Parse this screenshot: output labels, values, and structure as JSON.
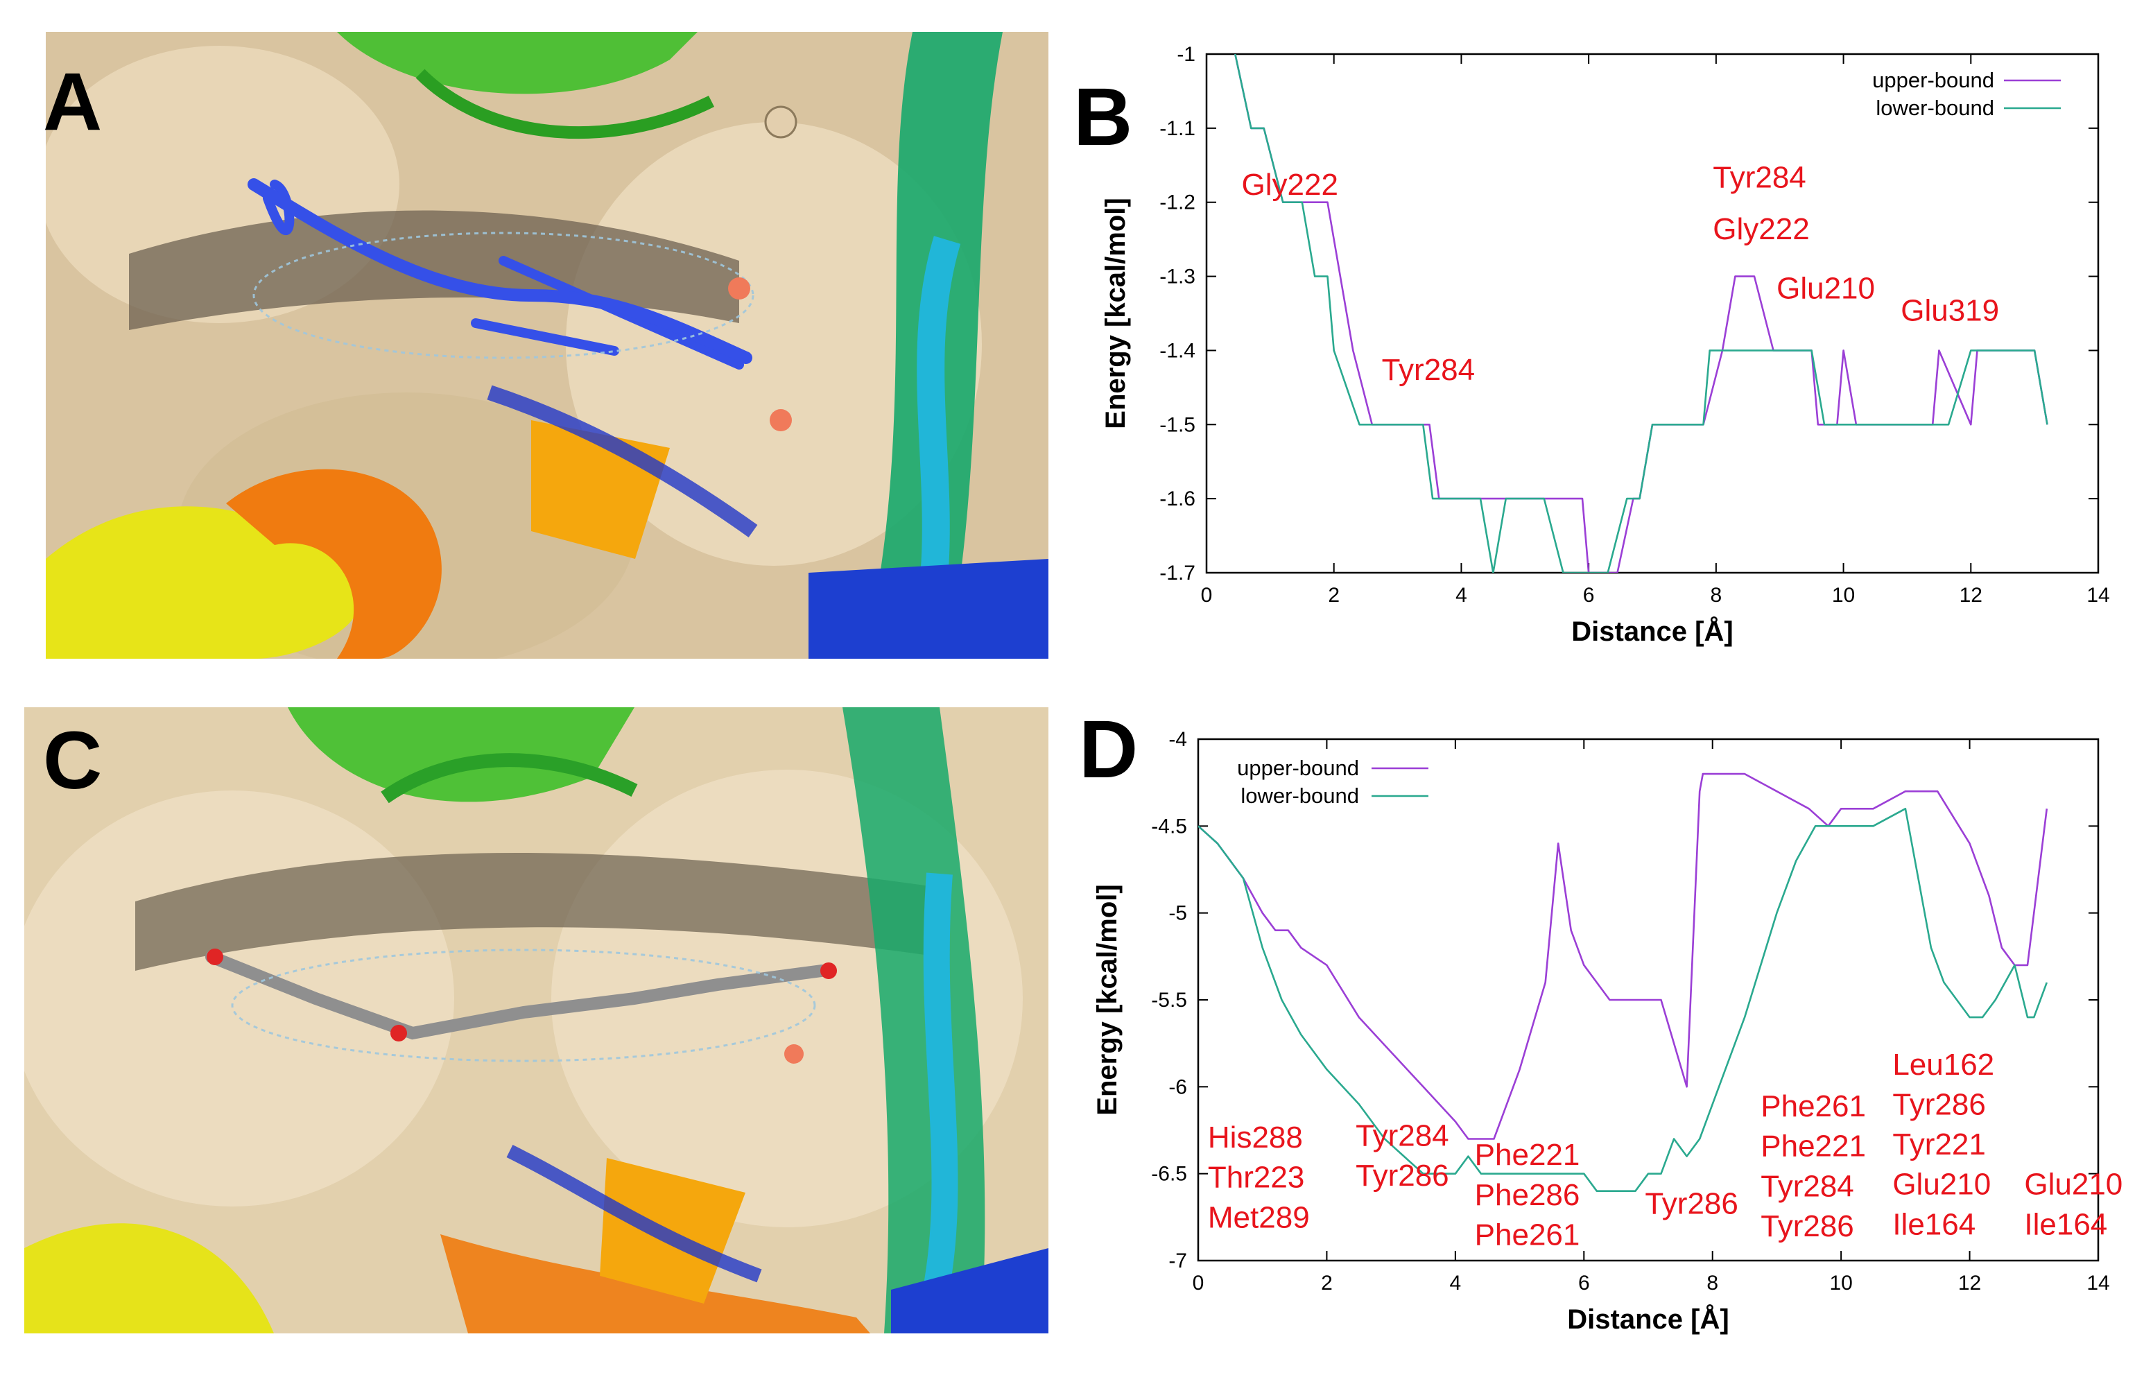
{
  "panels": {
    "A": {
      "letter": "A"
    },
    "B": {
      "letter": "B"
    },
    "C": {
      "letter": "C"
    },
    "D": {
      "letter": "D"
    }
  },
  "colors": {
    "upper_bound": "#9b3fd6",
    "lower_bound": "#2aa98f",
    "annotation": "#e8141c",
    "surface": "#e6d3b3",
    "ligand_A": "#3355e6",
    "ligand_C": "#8c8c8c"
  },
  "chart_data": [
    {
      "panel": "B",
      "type": "line",
      "xlabel": "Distance [Å]",
      "ylabel": "Energy [kcal/mol]",
      "xlim": [
        0,
        14
      ],
      "ylim": [
        -1.7,
        -1.0
      ],
      "xticks": [
        0,
        2,
        4,
        6,
        8,
        10,
        12,
        14
      ],
      "yticks": [
        -1.7,
        -1.6,
        -1.5,
        -1.4,
        -1.3,
        -1.2,
        -1.1,
        -1
      ],
      "legend_position": "top-right",
      "series": [
        {
          "name": "upper-bound",
          "color": "#9b3fd6",
          "x": [
            0.45,
            0.7,
            0.9,
            1.2,
            1.9,
            2.1,
            2.3,
            2.6,
            3.5,
            3.65,
            4.4,
            4.5,
            4.9,
            5.3,
            5.9,
            6.0,
            6.35,
            6.45,
            6.7,
            6.8,
            7.0,
            7.8,
            8.1,
            8.3,
            8.6,
            8.9,
            9.4,
            9.5,
            9.6,
            9.8,
            9.9,
            10.0,
            10.2,
            11.3,
            11.4,
            11.5,
            12.0,
            12.1,
            13.0,
            13.2
          ],
          "y": [
            -1.0,
            -1.1,
            -1.1,
            -1.2,
            -1.2,
            -1.3,
            -1.4,
            -1.5,
            -1.5,
            -1.6,
            -1.6,
            -1.6,
            -1.6,
            -1.6,
            -1.6,
            -1.7,
            -1.7,
            -1.7,
            -1.6,
            -1.6,
            -1.5,
            -1.5,
            -1.4,
            -1.3,
            -1.3,
            -1.4,
            -1.4,
            -1.4,
            -1.5,
            -1.5,
            -1.5,
            -1.4,
            -1.5,
            -1.5,
            -1.5,
            -1.4,
            -1.5,
            -1.4,
            -1.4,
            -1.5
          ]
        },
        {
          "name": "lower-bound",
          "color": "#2aa98f",
          "x": [
            0.45,
            0.7,
            0.9,
            1.2,
            1.5,
            1.7,
            1.9,
            2.0,
            2.4,
            3.4,
            3.55,
            4.2,
            4.3,
            4.5,
            4.7,
            5.0,
            5.3,
            5.6,
            5.9,
            6.3,
            6.6,
            6.8,
            7.0,
            7.8,
            7.9,
            8.8,
            9.0,
            9.5,
            9.7,
            11.5,
            11.6,
            11.65,
            12.0,
            13.0,
            13.2
          ],
          "y": [
            -1.0,
            -1.1,
            -1.1,
            -1.2,
            -1.2,
            -1.3,
            -1.3,
            -1.4,
            -1.5,
            -1.5,
            -1.6,
            -1.6,
            -1.6,
            -1.7,
            -1.6,
            -1.6,
            -1.6,
            -1.7,
            -1.7,
            -1.7,
            -1.6,
            -1.6,
            -1.5,
            -1.5,
            -1.4,
            -1.4,
            -1.4,
            -1.4,
            -1.5,
            -1.5,
            -1.5,
            -1.5,
            -1.4,
            -1.4,
            -1.5
          ]
        }
      ],
      "annotations": [
        {
          "text": "Gly222",
          "x": 0.55,
          "y": -1.19
        },
        {
          "text": "Tyr284",
          "x": 2.75,
          "y": -1.44
        },
        {
          "text": "Tyr284",
          "x": 7.95,
          "y": -1.18
        },
        {
          "text": "Gly222",
          "x": 7.95,
          "y": -1.25
        },
        {
          "text": "Glu210",
          "x": 8.95,
          "y": -1.33
        },
        {
          "text": "Glu319",
          "x": 10.9,
          "y": -1.36
        }
      ]
    },
    {
      "panel": "D",
      "type": "line",
      "xlabel": "Distance [Å]",
      "ylabel": "Energy [kcal/mol]",
      "xlim": [
        0,
        14
      ],
      "ylim": [
        -7,
        -4
      ],
      "xticks": [
        0,
        2,
        4,
        6,
        8,
        10,
        12,
        14
      ],
      "yticks": [
        -7,
        -6.5,
        -6,
        -5.5,
        -5,
        -4.5,
        -4
      ],
      "legend_position": "top-left",
      "series": [
        {
          "name": "upper-bound",
          "color": "#9b3fd6",
          "x": [
            0,
            0.3,
            0.7,
            1.0,
            1.2,
            1.4,
            1.6,
            2.0,
            2.5,
            3.0,
            3.5,
            4.0,
            4.2,
            4.6,
            5.0,
            5.4,
            5.6,
            5.8,
            6.0,
            6.4,
            6.8,
            7.2,
            7.4,
            7.6,
            7.8,
            7.85,
            8.0,
            8.5,
            9.0,
            9.5,
            9.8,
            10.0,
            10.5,
            11.0,
            11.5,
            12.0,
            12.3,
            12.5,
            12.7,
            12.9,
            13.2
          ],
          "y": [
            -4.5,
            -4.6,
            -4.8,
            -5.0,
            -5.1,
            -5.1,
            -5.2,
            -5.3,
            -5.6,
            -5.8,
            -6.0,
            -6.2,
            -6.3,
            -6.3,
            -5.9,
            -5.4,
            -4.6,
            -5.1,
            -5.3,
            -5.5,
            -5.5,
            -5.5,
            -5.75,
            -6.0,
            -4.3,
            -4.2,
            -4.2,
            -4.2,
            -4.3,
            -4.4,
            -4.5,
            -4.4,
            -4.4,
            -4.3,
            -4.3,
            -4.6,
            -4.9,
            -5.2,
            -5.3,
            -5.3,
            -4.4
          ]
        },
        {
          "name": "lower-bound",
          "color": "#2aa98f",
          "x": [
            0,
            0.3,
            0.7,
            1.0,
            1.3,
            1.6,
            2.0,
            2.5,
            2.9,
            3.2,
            3.5,
            3.8,
            4.0,
            4.2,
            4.4,
            4.6,
            5.0,
            5.5,
            6.0,
            6.2,
            6.4,
            6.8,
            7.0,
            7.2,
            7.4,
            7.6,
            7.8,
            8.1,
            8.5,
            9.0,
            9.3,
            9.6,
            9.8,
            10.0,
            10.3,
            10.5,
            11.0,
            11.2,
            11.4,
            11.6,
            12.0,
            12.2,
            12.4,
            12.7,
            12.9,
            13.0,
            13.2
          ],
          "y": [
            -4.5,
            -4.6,
            -4.8,
            -5.2,
            -5.5,
            -5.7,
            -5.9,
            -6.1,
            -6.3,
            -6.4,
            -6.5,
            -6.5,
            -6.5,
            -6.4,
            -6.5,
            -6.5,
            -6.5,
            -6.5,
            -6.5,
            -6.6,
            -6.6,
            -6.6,
            -6.5,
            -6.5,
            -6.3,
            -6.4,
            -6.3,
            -6.0,
            -5.6,
            -5.0,
            -4.7,
            -4.5,
            -4.5,
            -4.5,
            -4.5,
            -4.5,
            -4.4,
            -4.8,
            -5.2,
            -5.4,
            -5.6,
            -5.6,
            -5.5,
            -5.3,
            -5.6,
            -5.6,
            -5.4
          ]
        }
      ],
      "annotations": [
        {
          "text": "His288",
          "x": 0.15,
          "y": -6.35
        },
        {
          "text": "Thr223",
          "x": 0.15,
          "y": -6.58
        },
        {
          "text": "Met289",
          "x": 0.15,
          "y": -6.81
        },
        {
          "text": "Tyr284",
          "x": 2.45,
          "y": -6.34
        },
        {
          "text": "Tyr286",
          "x": 2.45,
          "y": -6.57
        },
        {
          "text": "Phe221",
          "x": 4.3,
          "y": -6.45
        },
        {
          "text": "Phe286",
          "x": 4.3,
          "y": -6.68
        },
        {
          "text": "Phe261",
          "x": 4.3,
          "y": -6.91
        },
        {
          "text": "Tyr286",
          "x": 6.95,
          "y": -6.73
        },
        {
          "text": "Phe261",
          "x": 8.75,
          "y": -6.17
        },
        {
          "text": "Phe221",
          "x": 8.75,
          "y": -6.4
        },
        {
          "text": "Tyr284",
          "x": 8.75,
          "y": -6.63
        },
        {
          "text": "Tyr286",
          "x": 8.75,
          "y": -6.86
        },
        {
          "text": "Leu162",
          "x": 10.8,
          "y": -5.93
        },
        {
          "text": "Tyr286",
          "x": 10.8,
          "y": -6.16
        },
        {
          "text": "Tyr221",
          "x": 10.8,
          "y": -6.39
        },
        {
          "text": "Glu210",
          "x": 10.8,
          "y": -6.62
        },
        {
          "text": "Ile164",
          "x": 10.8,
          "y": -6.85
        },
        {
          "text": "Glu210",
          "x": 12.85,
          "y": -6.62
        },
        {
          "text": "Ile164",
          "x": 12.85,
          "y": -6.85
        }
      ]
    }
  ]
}
